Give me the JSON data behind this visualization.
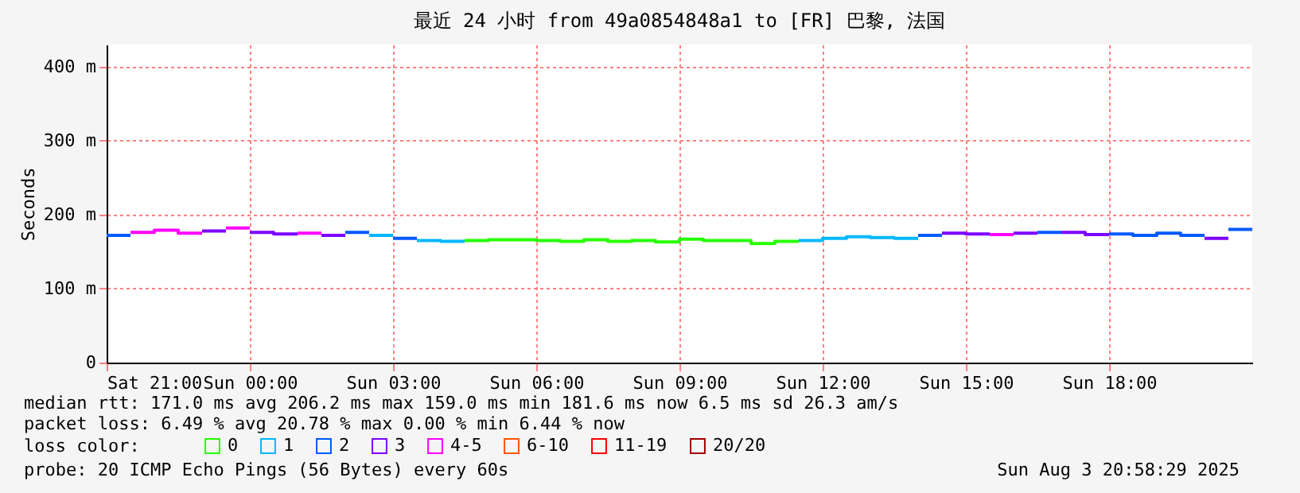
{
  "chart_data": {
    "type": "step",
    "title": "最近 24 小时 from 49a0854848a1 to [FR] 巴黎, 法国",
    "ylabel": "Seconds",
    "xlim": [
      "2025-08-02T21:00",
      "2025-08-03T21:00"
    ],
    "xticks": [
      {
        "value": "2025-08-02T21:00",
        "label": "Sat 21:00"
      },
      {
        "value": "2025-08-03T00:00",
        "label": "Sun 00:00"
      },
      {
        "value": "2025-08-03T03:00",
        "label": "Sun 03:00"
      },
      {
        "value": "2025-08-03T06:00",
        "label": "Sun 06:00"
      },
      {
        "value": "2025-08-03T09:00",
        "label": "Sun 09:00"
      },
      {
        "value": "2025-08-03T12:00",
        "label": "Sun 12:00"
      },
      {
        "value": "2025-08-03T15:00",
        "label": "Sun 15:00"
      },
      {
        "value": "2025-08-03T18:00",
        "label": "Sun 18:00"
      }
    ],
    "ylim": [
      0,
      430
    ],
    "yticks": [
      0,
      {
        "value": 100,
        "label": "100 m"
      },
      {
        "value": 200,
        "label": "200 m"
      },
      {
        "value": 300,
        "label": "300 m"
      },
      {
        "value": 400,
        "label": "400 m"
      }
    ],
    "grid": true,
    "legend": "bottom",
    "legend_title": "loss color:",
    "series": [
      {
        "name": "0",
        "color": "#26ff00",
        "x": [
          "2025-08-03T04:30",
          "2025-08-03T05:00",
          "2025-08-03T05:30",
          "2025-08-03T06:00",
          "2025-08-03T06:30",
          "2025-08-03T07:00",
          "2025-08-03T07:30",
          "2025-08-03T08:00",
          "2025-08-03T08:30",
          "2025-08-03T09:00",
          "2025-08-03T09:30",
          "2025-08-03T10:00",
          "2025-08-03T10:30",
          "2025-08-03T11:00",
          "2025-08-03T11:30"
        ],
        "values": [
          165,
          166,
          166,
          165,
          164,
          166,
          164,
          165,
          163,
          167,
          165,
          165,
          161,
          164,
          164
        ]
      },
      {
        "name": "1",
        "color": "#00b8ff",
        "x": [
          "2025-08-03T02:30",
          "2025-08-03T03:00",
          null,
          "2025-08-03T03:30",
          "2025-08-03T04:00",
          "2025-08-03T04:30",
          null,
          "2025-08-03T11:30",
          "2025-08-03T12:00",
          "2025-08-03T12:30",
          "2025-08-03T13:00",
          "2025-08-03T13:30",
          "2025-08-03T14:00"
        ],
        "values": [
          172,
          172,
          null,
          165,
          164,
          164,
          null,
          165,
          168,
          170,
          169,
          168,
          168
        ]
      },
      {
        "name": "2",
        "color": "#0059ff",
        "x": [
          "2025-08-02T21:00",
          "2025-08-02T21:30",
          null,
          "2025-08-03T02:00",
          "2025-08-03T02:30",
          null,
          "2025-08-03T03:00",
          "2025-08-03T03:30",
          null,
          "2025-08-03T14:00",
          "2025-08-03T14:30",
          null,
          "2025-08-03T16:30",
          "2025-08-03T17:00",
          null,
          "2025-08-03T18:00",
          "2025-08-03T18:30",
          "2025-08-03T19:00",
          "2025-08-03T19:30",
          "2025-08-03T20:00",
          null,
          "2025-08-03T20:30",
          "2025-08-03T21:00"
        ],
        "values": [
          172,
          172,
          null,
          176,
          176,
          null,
          168,
          168,
          null,
          172,
          172,
          null,
          176,
          176,
          null,
          174,
          172,
          175,
          172,
          172,
          null,
          180,
          180
        ]
      },
      {
        "name": "3",
        "color": "#7e00ff",
        "x": [
          "2025-08-02T23:00",
          "2025-08-02T23:30",
          null,
          "2025-08-03T00:00",
          "2025-08-03T00:30",
          "2025-08-03T01:00",
          null,
          "2025-08-03T01:30",
          "2025-08-03T02:00",
          null,
          "2025-08-03T14:30",
          "2025-08-03T15:00",
          "2025-08-03T15:30",
          null,
          "2025-08-03T16:00",
          "2025-08-03T16:30",
          null,
          "2025-08-03T17:00",
          "2025-08-03T17:30",
          "2025-08-03T18:00",
          null,
          "2025-08-03T20:00",
          "2025-08-03T20:30"
        ],
        "values": [
          178,
          178,
          null,
          176,
          174,
          174,
          null,
          172,
          172,
          null,
          175,
          174,
          174,
          null,
          175,
          175,
          null,
          176,
          173,
          173,
          null,
          168,
          168
        ]
      },
      {
        "name": "4-5",
        "color": "#ff00ff",
        "x": [
          "2025-08-02T21:30",
          "2025-08-02T22:00",
          "2025-08-02T22:30",
          "2025-08-02T23:00",
          null,
          "2025-08-02T23:30",
          "2025-08-03T00:00",
          null,
          "2025-08-03T01:00",
          "2025-08-03T01:30",
          null,
          "2025-08-03T15:30",
          "2025-08-03T16:00"
        ],
        "values": [
          176,
          179,
          175,
          175,
          null,
          182,
          182,
          null,
          175,
          175,
          null,
          173,
          173
        ]
      },
      {
        "name": "6-10",
        "color": "#ff5500"
      },
      {
        "name": "11-19",
        "color": "#ff0000"
      },
      {
        "name": "20/20",
        "color": "#a10000"
      }
    ],
    "annotations": [
      "median rtt:  171.0 ms avg   206.2 ms max   159.0 ms min   181.6 ms now   6.5 ms sd   26.3   am/s",
      "packet loss: 6.49 % avg  20.78 % max  0.00 % min  6.44 % now",
      "probe:        20 ICMP Echo Pings (56 Bytes) every 60s",
      "Sun Aug  3 20:58:29 2025"
    ]
  }
}
